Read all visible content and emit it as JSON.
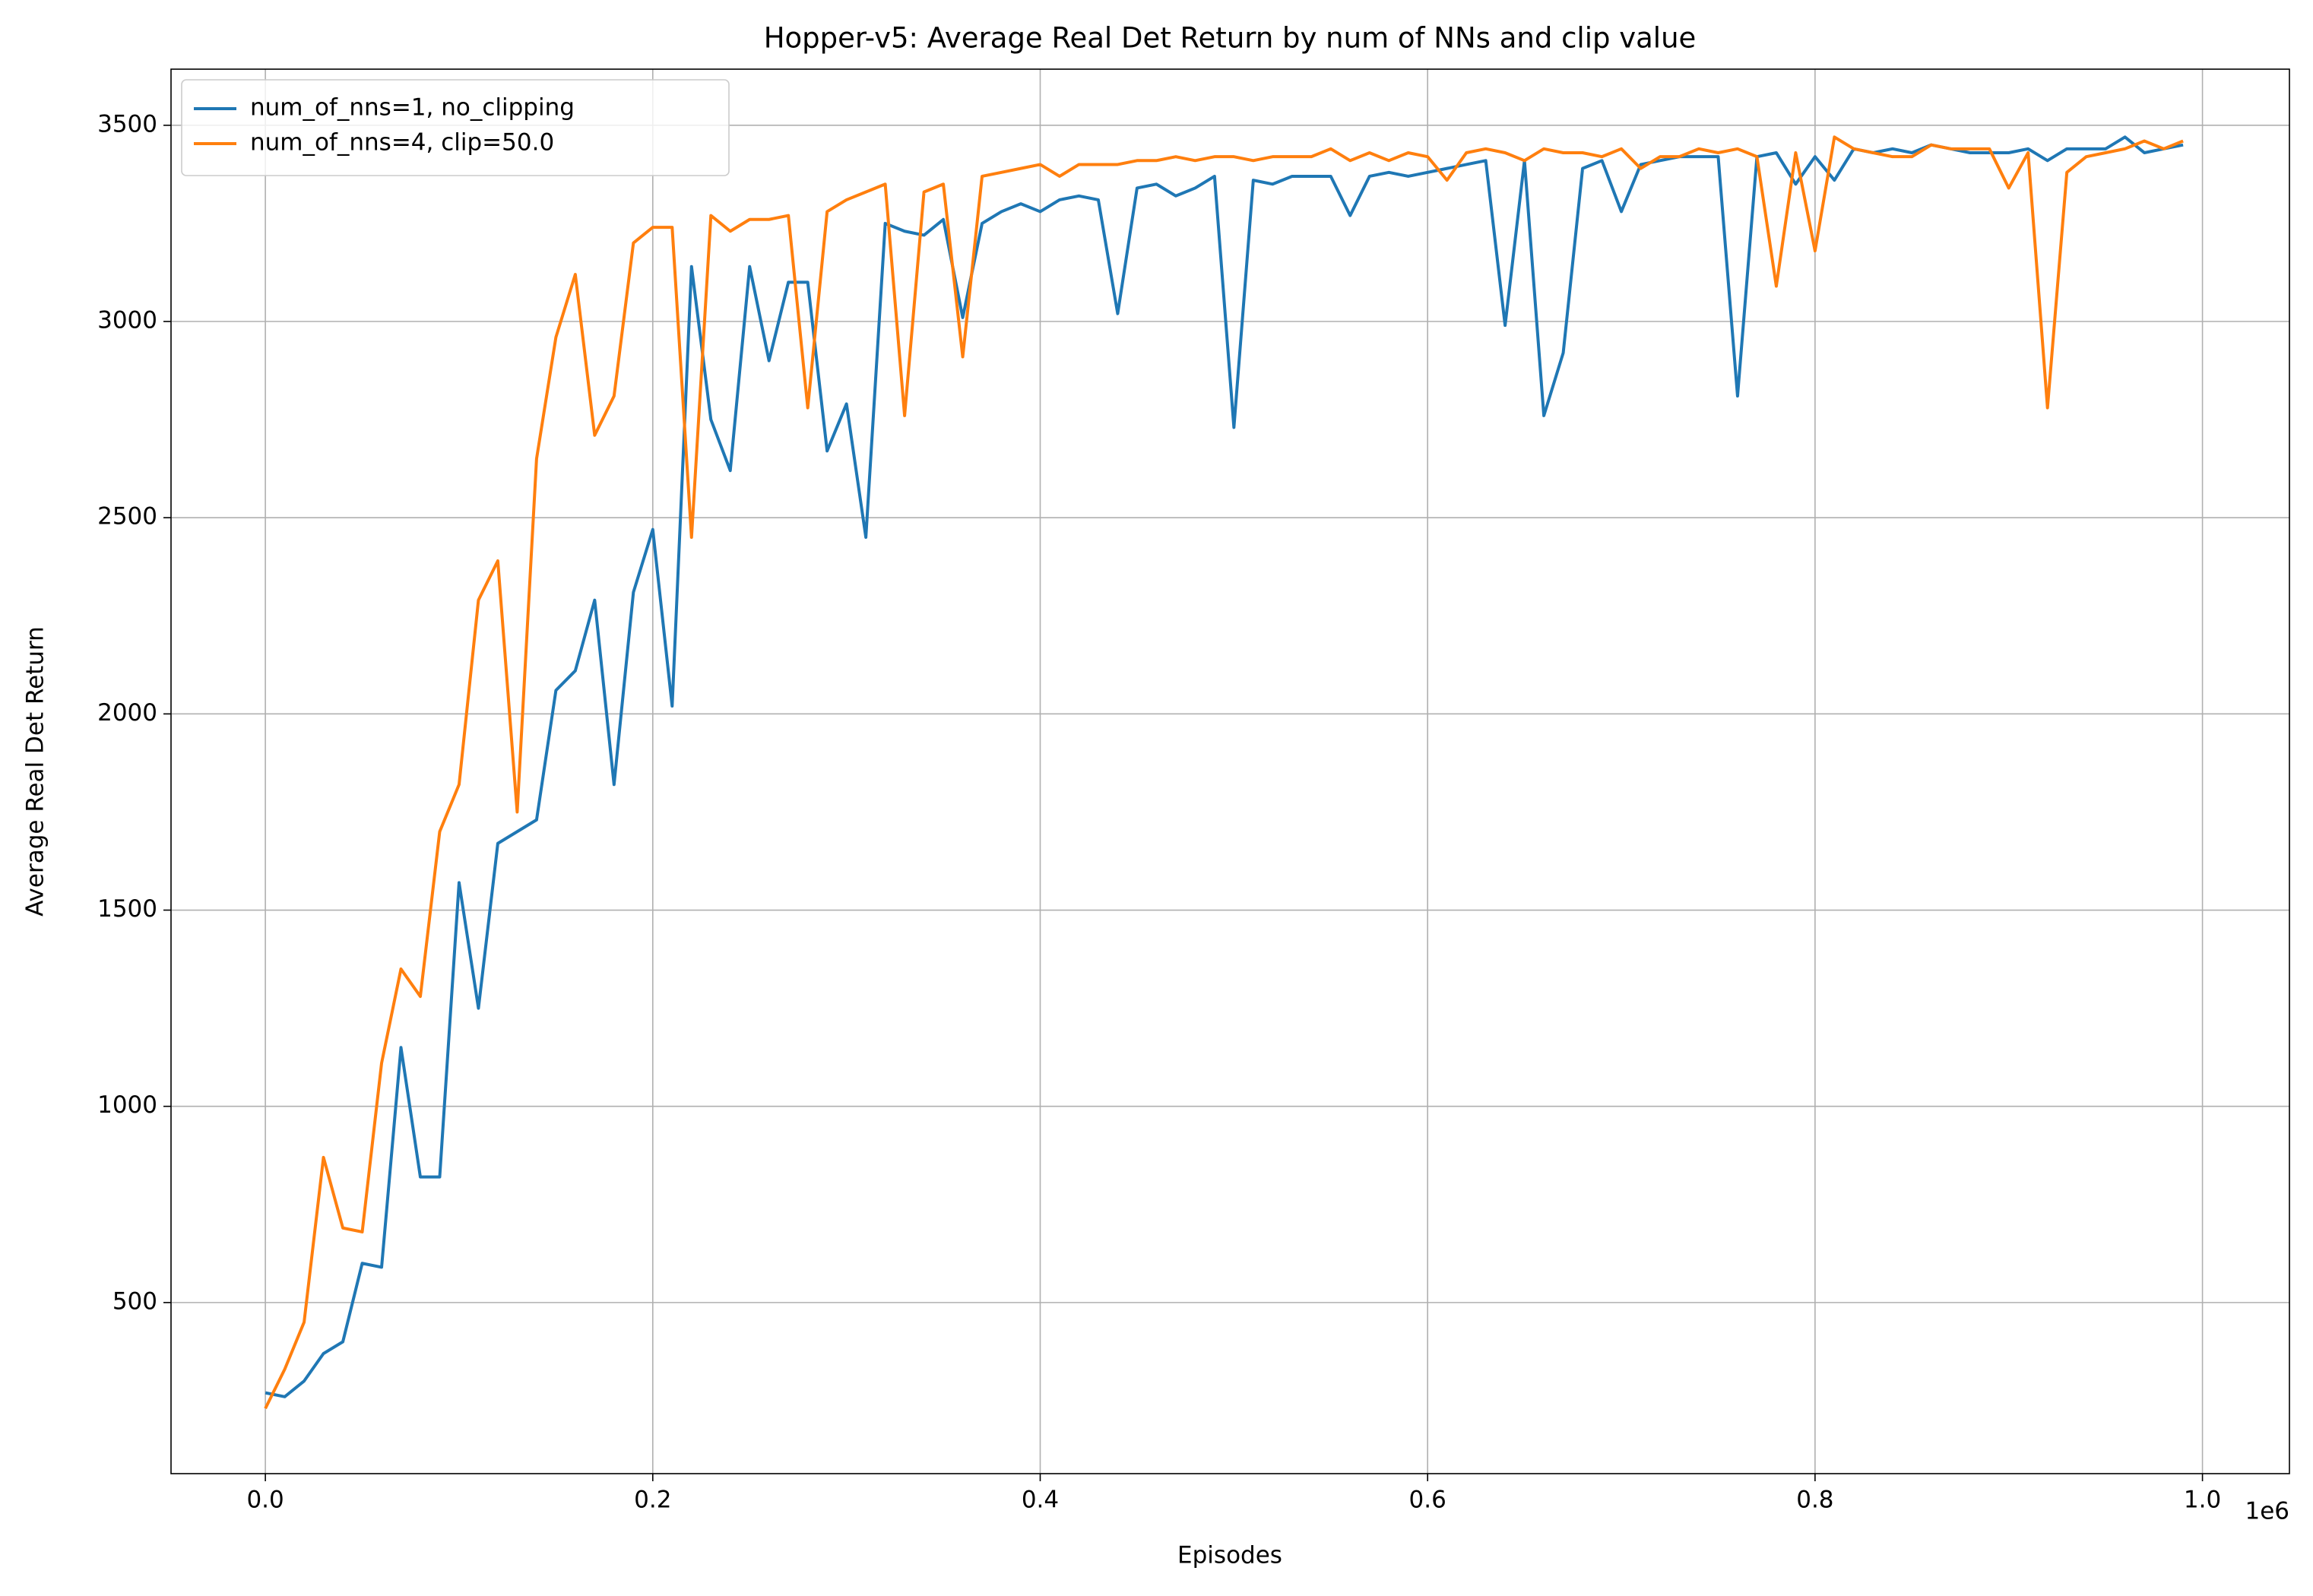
{
  "chart_data": {
    "type": "line",
    "title": "Hopper-v5: Average Real Det Return by num of NNs and clip value",
    "xlabel": "Episodes",
    "ylabel": "Average Real Det Return",
    "x_offset_label": "1e6",
    "x": [
      0,
      10000,
      20000,
      30000,
      40000,
      50000,
      60000,
      70000,
      80000,
      90000,
      100000,
      110000,
      120000,
      130000,
      140000,
      150000,
      160000,
      170000,
      180000,
      190000,
      200000,
      210000,
      220000,
      230000,
      240000,
      250000,
      260000,
      270000,
      280000,
      290000,
      300000,
      310000,
      320000,
      330000,
      340000,
      350000,
      360000,
      370000,
      380000,
      390000,
      400000,
      410000,
      420000,
      430000,
      440000,
      450000,
      460000,
      470000,
      480000,
      490000,
      500000,
      510000,
      520000,
      530000,
      540000,
      550000,
      560000,
      570000,
      580000,
      590000,
      600000,
      610000,
      620000,
      630000,
      640000,
      650000,
      660000,
      670000,
      680000,
      690000,
      700000,
      710000,
      720000,
      730000,
      740000,
      750000,
      760000,
      770000,
      780000,
      790000,
      800000,
      810000,
      820000,
      830000,
      840000,
      850000,
      860000,
      870000,
      880000,
      890000,
      900000,
      910000,
      920000,
      930000,
      940000,
      950000,
      960000,
      970000,
      980000,
      990000
    ],
    "series": [
      {
        "name": "num_of_nns=1, no_clipping",
        "color": "#1f77b4",
        "values": [
          270,
          260,
          300,
          370,
          400,
          600,
          590,
          1150,
          820,
          820,
          1570,
          1250,
          1670,
          1700,
          1730,
          2060,
          2110,
          2290,
          1820,
          2310,
          2470,
          2020,
          3140,
          2750,
          2620,
          3140,
          2900,
          3100,
          3100,
          2670,
          2790,
          2450,
          3250,
          3230,
          3220,
          3260,
          3010,
          3250,
          3280,
          3300,
          3280,
          3310,
          3320,
          3310,
          3020,
          3340,
          3350,
          3320,
          3340,
          3370,
          2730,
          3360,
          3350,
          3370,
          3370,
          3370,
          3270,
          3370,
          3380,
          3370,
          3380,
          3390,
          3400,
          3410,
          2990,
          3410,
          2760,
          2920,
          3390,
          3410,
          3280,
          3400,
          3410,
          3420,
          3420,
          3420,
          2810,
          3420,
          3430,
          3350,
          3420,
          3360,
          3440,
          3430,
          3440,
          3430,
          3450,
          3440,
          3430,
          3430,
          3430,
          3440,
          3410,
          3440,
          3440,
          3440,
          3470,
          3430,
          3440,
          3450
        ]
      },
      {
        "name": "num_of_nns=4, clip=50.0",
        "color": "#ff7f0e",
        "values": [
          230,
          330,
          450,
          870,
          690,
          680,
          1110,
          1350,
          1280,
          1700,
          1820,
          2290,
          2390,
          1750,
          2650,
          2960,
          3120,
          2710,
          2810,
          3200,
          3240,
          3240,
          2450,
          3270,
          3230,
          3260,
          3260,
          3270,
          2780,
          3280,
          3310,
          3330,
          3350,
          2760,
          3330,
          3350,
          2910,
          3370,
          3380,
          3390,
          3400,
          3370,
          3400,
          3400,
          3400,
          3410,
          3410,
          3420,
          3410,
          3420,
          3420,
          3410,
          3420,
          3420,
          3420,
          3440,
          3410,
          3430,
          3410,
          3430,
          3420,
          3360,
          3430,
          3440,
          3430,
          3410,
          3440,
          3430,
          3430,
          3420,
          3440,
          3390,
          3420,
          3420,
          3440,
          3430,
          3440,
          3420,
          3090,
          3430,
          3180,
          3470,
          3440,
          3430,
          3420,
          3420,
          3450,
          3440,
          3440,
          3440,
          3340,
          3430,
          2780,
          3380,
          3420,
          3430,
          3440,
          3460,
          3440,
          3460
        ]
      }
    ],
    "xlim": [
      -48700,
      1044900
    ],
    "ylim": [
      64,
      3643
    ],
    "xticks": [
      {
        "value": 0,
        "label": "0.0"
      },
      {
        "value": 200000,
        "label": "0.2"
      },
      {
        "value": 400000,
        "label": "0.4"
      },
      {
        "value": 600000,
        "label": "0.6"
      },
      {
        "value": 800000,
        "label": "0.8"
      },
      {
        "value": 1000000,
        "label": "1.0"
      }
    ],
    "yticks": [
      500,
      1000,
      1500,
      2000,
      2500,
      3000,
      3500
    ],
    "grid": true,
    "legend": "upper left"
  }
}
